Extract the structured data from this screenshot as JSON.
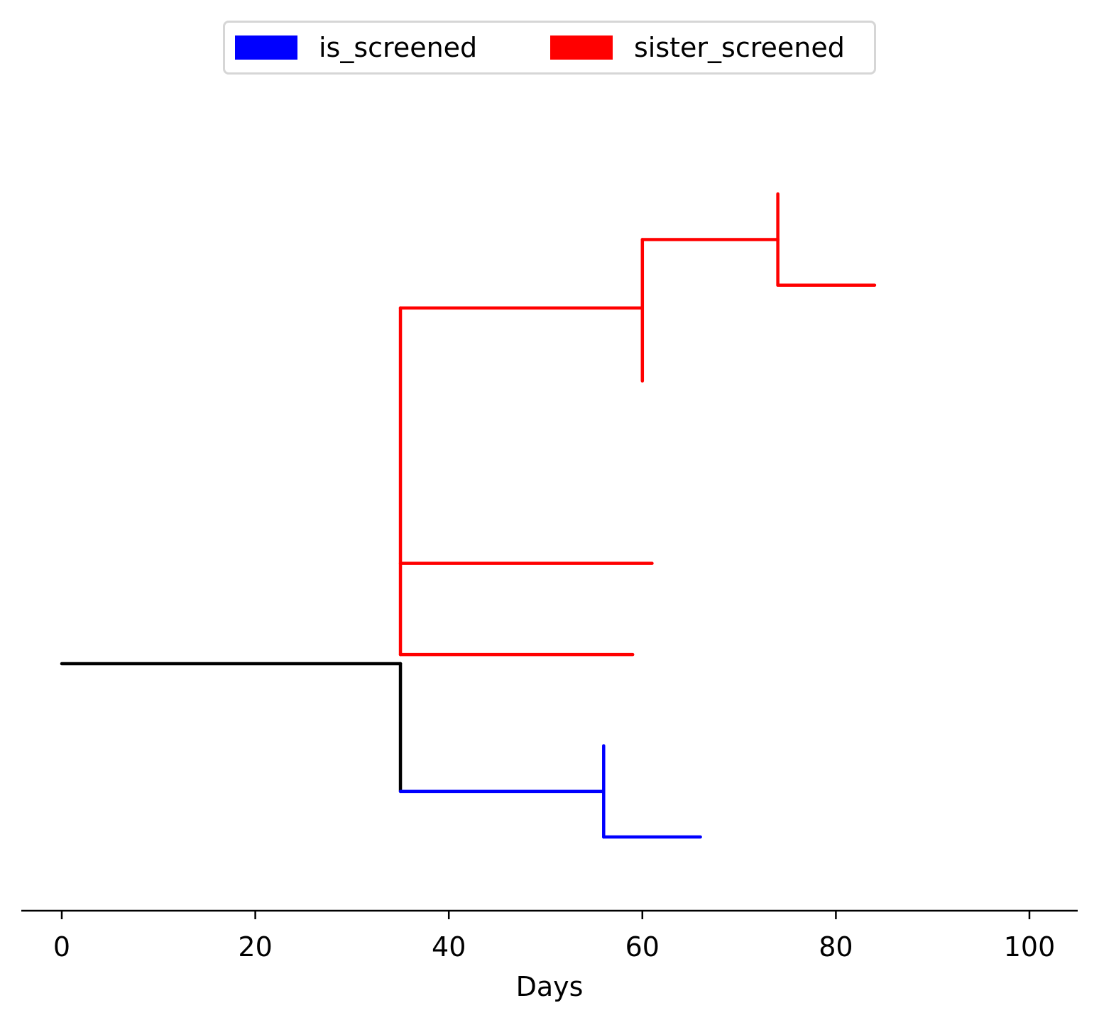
{
  "chart_data": {
    "type": "line",
    "title": "",
    "xlabel": "Days",
    "ylabel": "",
    "xlim": [
      -4,
      105
    ],
    "x_ticks": [
      0,
      20,
      40,
      60,
      80,
      100
    ],
    "x_tick_labels": [
      "0",
      "20",
      "40",
      "60",
      "80",
      "100"
    ],
    "grid": false,
    "legend_placement": "top-center",
    "legend": [
      {
        "label": "is_screened",
        "color": "#0000ff"
      },
      {
        "label": "sister_screened",
        "color": "#ff0000"
      }
    ],
    "tree_segments": [
      {
        "series": "root",
        "color": "#000000",
        "x": [
          0,
          35
        ],
        "y": [
          0,
          0
        ]
      },
      {
        "series": "root",
        "color": "#000000",
        "x": [
          35,
          35
        ],
        "y": [
          0,
          -1.4
        ]
      },
      {
        "series": "is_screened",
        "color": "#0000ff",
        "x": [
          35,
          56
        ],
        "y": [
          -1.4,
          -1.4
        ]
      },
      {
        "series": "is_screened",
        "color": "#0000ff",
        "x": [
          56,
          56
        ],
        "y": [
          -0.9,
          -1.9
        ]
      },
      {
        "series": "is_screened",
        "color": "#0000ff",
        "x": [
          56,
          66
        ],
        "y": [
          -1.9,
          -1.9
        ]
      },
      {
        "series": "sister_screened",
        "color": "#ff0000",
        "x": [
          35,
          35
        ],
        "y": [
          0.1,
          3.9
        ]
      },
      {
        "series": "sister_screened",
        "color": "#ff0000",
        "x": [
          35,
          59
        ],
        "y": [
          0.1,
          0.1
        ]
      },
      {
        "series": "sister_screened",
        "color": "#ff0000",
        "x": [
          35,
          61
        ],
        "y": [
          1.1,
          1.1
        ]
      },
      {
        "series": "sister_screened",
        "color": "#ff0000",
        "x": [
          35,
          60
        ],
        "y": [
          3.9,
          3.9
        ]
      },
      {
        "series": "sister_screened",
        "color": "#ff0000",
        "x": [
          60,
          60
        ],
        "y": [
          3.1,
          4.65
        ]
      },
      {
        "series": "sister_screened",
        "color": "#ff0000",
        "x": [
          60,
          74
        ],
        "y": [
          4.65,
          4.65
        ]
      },
      {
        "series": "sister_screened",
        "color": "#ff0000",
        "x": [
          74,
          74
        ],
        "y": [
          4.15,
          5.15
        ]
      },
      {
        "series": "sister_screened",
        "color": "#ff0000",
        "x": [
          74,
          84
        ],
        "y": [
          4.15,
          4.15
        ]
      }
    ]
  }
}
